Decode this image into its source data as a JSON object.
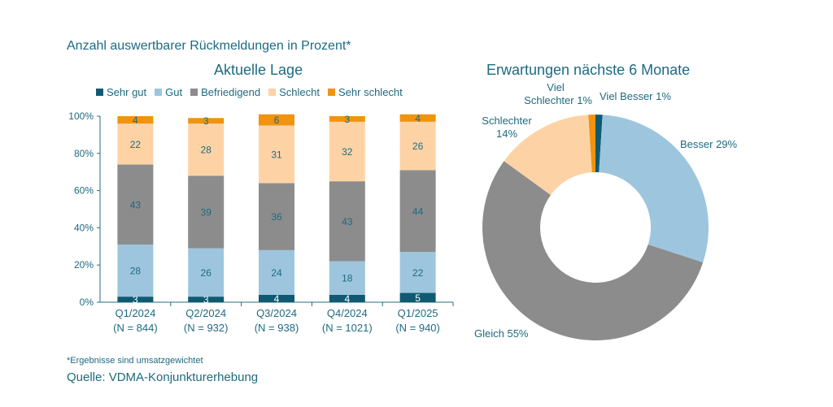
{
  "subtitle": "Anzahl auswertbarer Rückmeldungen in Prozent*",
  "footnote": "*Ergebnisse sind umsatzgewichtet",
  "source": "Quelle: VDMA-Konjunkturerhebung",
  "chart_data": [
    {
      "type": "bar",
      "stacked": true,
      "title": "Aktuelle Lage",
      "legend_position": "top",
      "categories": [
        "Q1/2024",
        "Q2/2024",
        "Q3/2024",
        "Q4/2024",
        "Q1/2025"
      ],
      "category_sublabels": [
        "(N = 844)",
        "(N = 932)",
        "(N = 938)",
        "(N = 1021)",
        "(N = 940)"
      ],
      "ylim": [
        0,
        100
      ],
      "yticks": [
        "0%",
        "20%",
        "40%",
        "60%",
        "80%",
        "100%"
      ],
      "grid": false,
      "series": [
        {
          "name": "Sehr gut",
          "color": "#0f5a72",
          "values": [
            3,
            3,
            4,
            4,
            5
          ]
        },
        {
          "name": "Gut",
          "color": "#9dc6de",
          "values": [
            28,
            26,
            24,
            18,
            22
          ]
        },
        {
          "name": "Befriedigend",
          "color": "#8c8c8c",
          "values": [
            43,
            39,
            36,
            43,
            44
          ]
        },
        {
          "name": "Schlecht",
          "color": "#fdd3a6",
          "values": [
            22,
            28,
            31,
            32,
            26
          ]
        },
        {
          "name": "Sehr schlecht",
          "color": "#f0930e",
          "values": [
            4,
            3,
            6,
            3,
            4
          ]
        }
      ]
    },
    {
      "type": "pie",
      "donut": true,
      "title": "Erwartungen nächste 6 Monate",
      "slices": [
        {
          "label": "Viel Besser 1%",
          "value": 1,
          "color": "#0f5a72"
        },
        {
          "label": "Besser 29%",
          "value": 29,
          "color": "#9dc6de"
        },
        {
          "label": "Gleich  55%",
          "value": 55,
          "color": "#8c8c8c"
        },
        {
          "label": "Schlechter 14%",
          "value": 14,
          "color": "#fdd3a6"
        },
        {
          "label": "Viel Schlechter 1%",
          "value": 1,
          "color": "#f0930e"
        }
      ]
    }
  ]
}
